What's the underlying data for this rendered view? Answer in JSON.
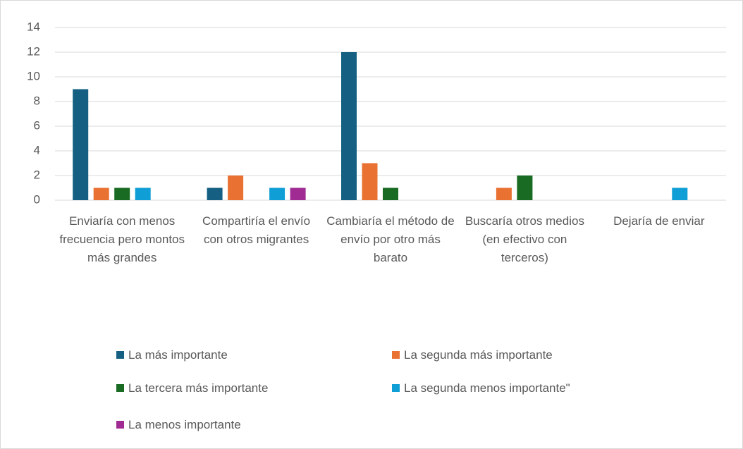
{
  "chart_data": {
    "type": "bar",
    "categories": [
      "Enviaría con menos frecuencia pero montos más grandes",
      "Compartiría el envío con otros migrantes",
      "Cambiaría el método de envío por otro más barato",
      "Buscaría otros medios (en efectivo con terceros)",
      "Dejaría de enviar"
    ],
    "series": [
      {
        "name": "La más importante",
        "color": "#156082",
        "values": [
          9,
          1,
          12,
          0,
          0
        ]
      },
      {
        "name": "La segunda más importante",
        "color": "#E97132",
        "values": [
          1,
          2,
          3,
          1,
          0
        ]
      },
      {
        "name": "La tercera más importante",
        "color": "#196B24",
        "values": [
          1,
          0,
          1,
          2,
          0
        ]
      },
      {
        "name": "La segunda menos importante\"",
        "color": "#0F9ED5",
        "values": [
          1,
          1,
          0,
          0,
          1
        ]
      },
      {
        "name": "La menos importante",
        "color": "#A02B93",
        "values": [
          0,
          1,
          0,
          0,
          0
        ]
      }
    ],
    "ylim": [
      0,
      14
    ],
    "yticks": [
      0,
      2,
      4,
      6,
      8,
      10,
      12,
      14
    ],
    "grid": true,
    "legend": "bottom"
  }
}
